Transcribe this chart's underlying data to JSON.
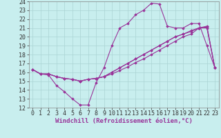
{
  "xlabel": "Windchill (Refroidissement éolien,°C)",
  "xlim": [
    -0.5,
    23.5
  ],
  "ylim": [
    12,
    24
  ],
  "xticks": [
    0,
    1,
    2,
    3,
    4,
    5,
    6,
    7,
    8,
    9,
    10,
    11,
    12,
    13,
    14,
    15,
    16,
    17,
    18,
    19,
    20,
    21,
    22,
    23
  ],
  "yticks": [
    12,
    13,
    14,
    15,
    16,
    17,
    18,
    19,
    20,
    21,
    22,
    23,
    24
  ],
  "bg_color": "#c8eeee",
  "grid_color": "#aad4d4",
  "line_color": "#993399",
  "tick_fontsize": 6,
  "xlabel_fontsize": 6.5,
  "series": [
    [
      16.3,
      15.8,
      15.7,
      14.5,
      13.8,
      13.0,
      12.3,
      12.3,
      14.8,
      16.5,
      19.0,
      21.0,
      21.5,
      22.5,
      23.0,
      23.8,
      23.7,
      21.2,
      21.0,
      21.0,
      21.5,
      21.5,
      19.0,
      16.5
    ],
    [
      16.3,
      15.8,
      15.8,
      15.5,
      15.3,
      15.2,
      15.0,
      15.2,
      15.3,
      15.5,
      16.0,
      16.5,
      17.0,
      17.5,
      18.0,
      18.5,
      19.0,
      19.5,
      20.0,
      20.3,
      20.7,
      21.0,
      21.2,
      16.5
    ],
    [
      16.3,
      15.8,
      15.8,
      15.5,
      15.3,
      15.2,
      15.0,
      15.2,
      15.3,
      15.5,
      16.0,
      16.5,
      17.0,
      17.5,
      18.0,
      18.5,
      19.0,
      19.5,
      20.0,
      20.3,
      20.6,
      21.0,
      21.1,
      16.5
    ],
    [
      16.3,
      15.8,
      15.8,
      15.5,
      15.3,
      15.2,
      15.0,
      15.2,
      15.3,
      15.5,
      15.8,
      16.2,
      16.6,
      17.1,
      17.5,
      18.0,
      18.5,
      19.0,
      19.5,
      20.0,
      20.3,
      21.0,
      21.0,
      16.5
    ]
  ]
}
